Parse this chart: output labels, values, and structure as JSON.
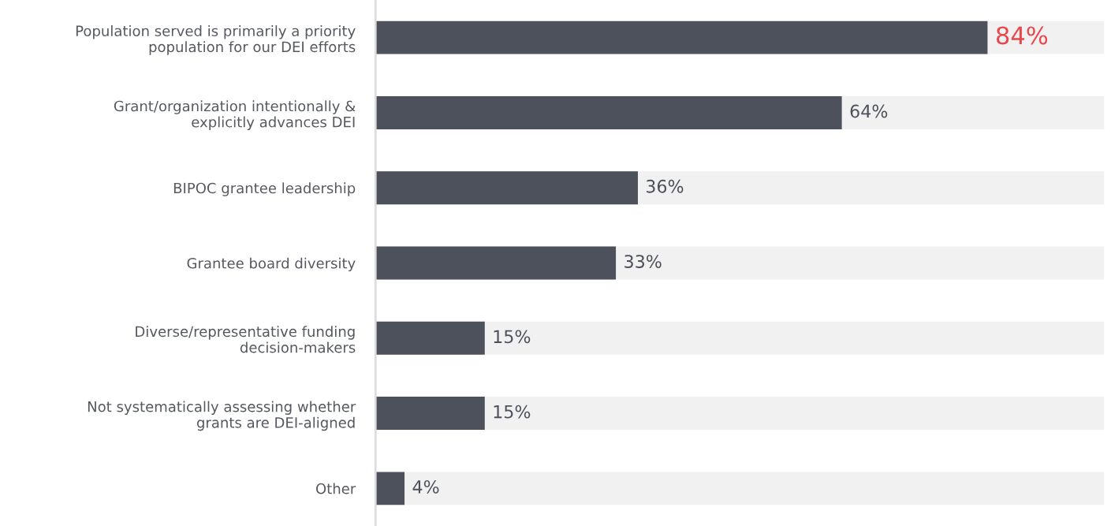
{
  "chart_data": {
    "type": "bar",
    "orientation": "horizontal",
    "stacked": true,
    "categories": [
      "Population served is primarily a priority\npopulation for our DEI efforts",
      "Grant/organization intentionally &\nexplicitly advances DEI",
      "BIPOC grantee leadership",
      "Grantee board diversity",
      "Diverse/representative funding\ndecision-makers",
      "Not systematically assessing whether\ngrants are DEI-aligned",
      "Other"
    ],
    "series": [
      {
        "color": "#4d515c",
        "values": [
          84,
          64,
          36,
          33,
          15,
          15,
          4
        ],
        "value_labels": [
          "84%",
          "64%",
          "36%",
          "33%",
          "15%",
          "15%",
          "4%"
        ]
      },
      {
        "color": "#f1f1f1",
        "values": [
          16,
          36,
          64,
          67,
          85,
          85,
          96
        ]
      }
    ],
    "xlim": [
      0,
      100
    ],
    "tick_labels": "y",
    "grid": false,
    "legend": false
  }
}
